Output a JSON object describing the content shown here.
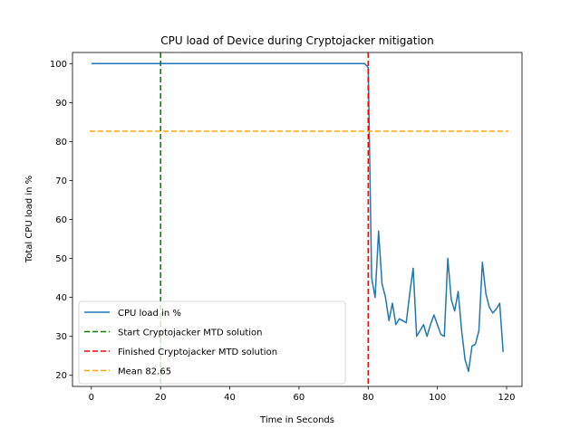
{
  "chart_data": {
    "type": "line",
    "title": "CPU load of Device during Cryptojacker mitigation",
    "xlabel": "Time in Seconds",
    "ylabel": "Total CPU load in %",
    "xlim": [
      -5.45,
      124.45
    ],
    "ylim": [
      17.15,
      102.85
    ],
    "x_ticks": [
      0,
      20,
      40,
      60,
      80,
      100,
      120
    ],
    "y_ticks": [
      20,
      30,
      40,
      50,
      60,
      70,
      80,
      90,
      100
    ],
    "grid": false,
    "legend_position": "lower-left",
    "series": [
      {
        "name": "CPU load in %",
        "color": "#1f77b4",
        "style": "solid",
        "x": [
          0,
          5,
          10,
          15,
          20,
          25,
          30,
          35,
          40,
          45,
          50,
          55,
          60,
          65,
          70,
          75,
          78,
          79,
          80,
          81,
          82,
          83,
          84,
          85,
          86,
          87,
          88,
          89,
          90,
          91,
          92,
          93,
          94,
          95,
          96,
          97,
          98,
          99,
          100,
          101,
          102,
          103,
          104,
          105,
          106,
          107,
          108,
          109,
          110,
          111,
          112,
          113,
          114,
          115,
          116,
          117,
          118,
          119
        ],
        "values": [
          100,
          100,
          100,
          100,
          100,
          100,
          100,
          100,
          100,
          100,
          100,
          100,
          100,
          100,
          100,
          100,
          100,
          100,
          99,
          45,
          40,
          57,
          43.5,
          40,
          34,
          38.5,
          33,
          34.5,
          34,
          33.5,
          41,
          47.5,
          30,
          31.5,
          33,
          30,
          33,
          35.5,
          33,
          30.5,
          30,
          50,
          39.5,
          36.5,
          41.5,
          31.5,
          24,
          21,
          27.5,
          28,
          31.5,
          49,
          41,
          37.5,
          36,
          37,
          38.5,
          26
        ]
      },
      {
        "name": "Start Cryptojacker MTD solution",
        "color": "#008000",
        "style": "dashed",
        "vline_x": 20
      },
      {
        "name": "Finished Cryptojacker MTD solution",
        "color": "#ff0000",
        "style": "dashed",
        "vline_x": 80
      },
      {
        "name": "Mean 82.65",
        "color": "#ffa500",
        "style": "dashed",
        "hline_y": 82.65,
        "x_range": [
          -0.5,
          120.5
        ]
      }
    ]
  }
}
